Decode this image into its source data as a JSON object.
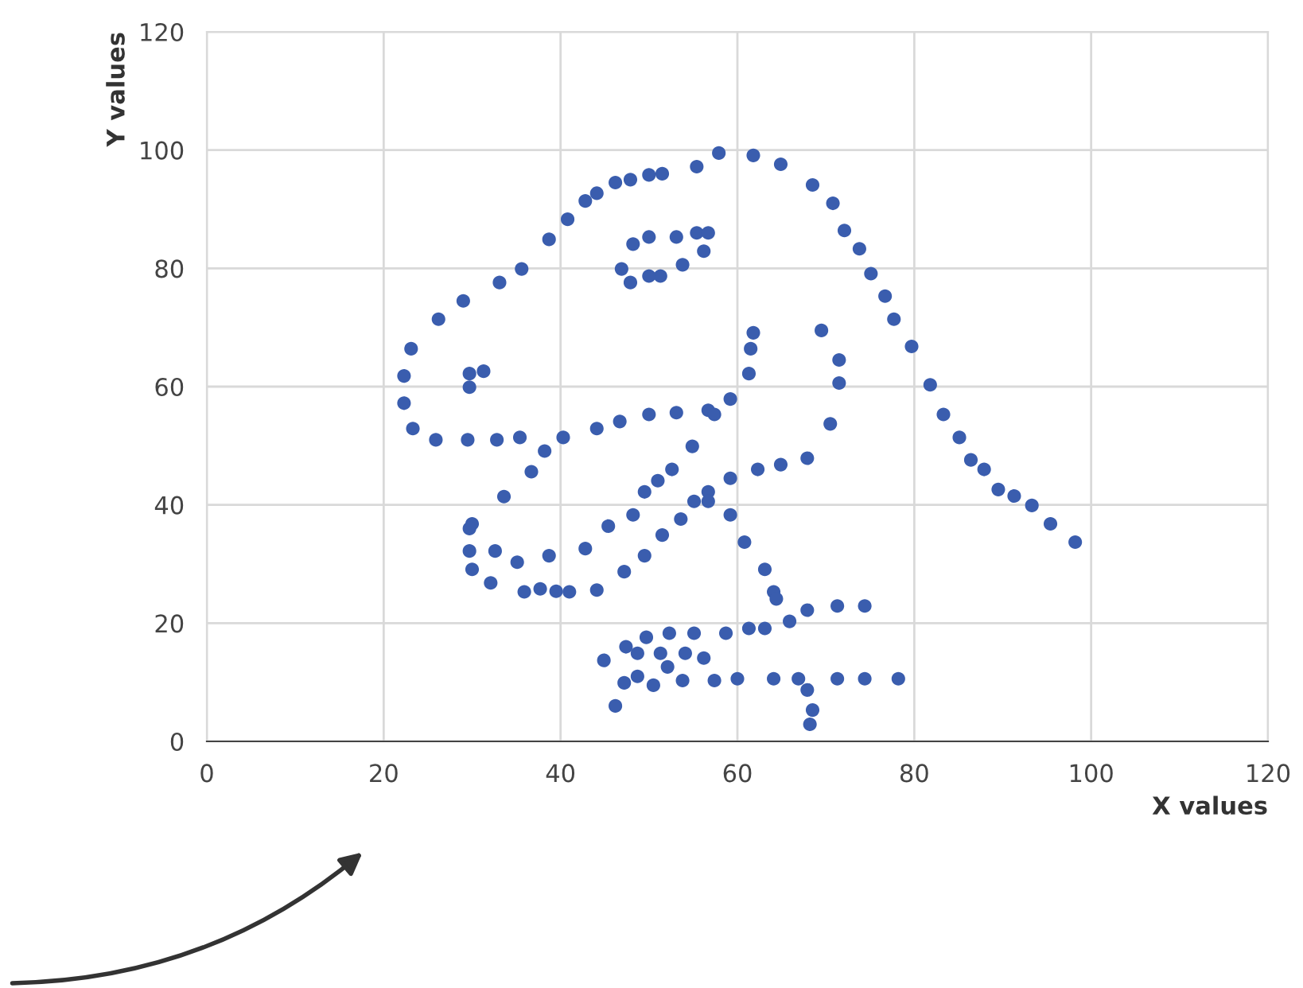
{
  "chart_data": {
    "type": "scatter",
    "xlabel": "X values",
    "ylabel": "Y values",
    "xlim": [
      0,
      120
    ],
    "ylim": [
      0,
      120
    ],
    "xticks": [
      0,
      20,
      40,
      60,
      80,
      100,
      120
    ],
    "yticks": [
      0,
      20,
      40,
      60,
      80,
      100,
      120
    ],
    "grid": true,
    "marker": "circle",
    "series": [
      {
        "color": "#3a5dae",
        "x": [
          55.4,
          51.5,
          46.2,
          42.8,
          40.8,
          38.7,
          35.6,
          33.1,
          29.0,
          26.2,
          23.1,
          22.3,
          22.3,
          23.3,
          25.9,
          29.5,
          32.8,
          35.4,
          40.3,
          44.1,
          46.7,
          50.0,
          53.1,
          56.7,
          59.2,
          61.3,
          61.5,
          61.8,
          57.4,
          54.9,
          52.6,
          48.2,
          49.5,
          51.0,
          45.4,
          42.8,
          38.7,
          35.1,
          32.6,
          30.0,
          33.6,
          36.7,
          38.2,
          29.7,
          29.7,
          30.0,
          32.1,
          35.9,
          41.0,
          44.1,
          47.2,
          49.5,
          51.5,
          53.6,
          55.1,
          56.7,
          59.2,
          62.3,
          64.9,
          67.9,
          70.5,
          71.5,
          71.5,
          69.5,
          46.9,
          48.2,
          50.0,
          53.1,
          55.4,
          56.7,
          56.2,
          53.8,
          51.3,
          50.0,
          47.9,
          29.7,
          29.7,
          31.3,
          57.9,
          61.8,
          64.9,
          68.5,
          70.8,
          72.1,
          73.8,
          75.1,
          76.7,
          77.7,
          79.7,
          81.8,
          83.3,
          85.1,
          86.4,
          87.9,
          89.5,
          93.3,
          95.4,
          98.2,
          56.7,
          59.2,
          60.8,
          63.1,
          64.1,
          64.4,
          74.4,
          71.3,
          67.9,
          65.9,
          63.1,
          61.3,
          58.7,
          55.1,
          52.3,
          49.7,
          47.4,
          44.9,
          48.7,
          51.3,
          54.1,
          56.2,
          52.1,
          48.7,
          47.2,
          46.2,
          50.5,
          53.8,
          57.4,
          60.0,
          64.1,
          66.9,
          71.3,
          74.4,
          78.2,
          67.9,
          68.5,
          68.2,
          37.7,
          39.5,
          91.3,
          50.0,
          47.9,
          44.1
        ],
        "values": [
          97.2,
          96.0,
          94.5,
          91.4,
          88.3,
          84.9,
          79.9,
          77.6,
          74.5,
          71.4,
          66.4,
          61.8,
          57.2,
          52.9,
          51.0,
          51.0,
          51.0,
          51.4,
          51.4,
          52.9,
          54.1,
          55.3,
          55.6,
          56.0,
          57.9,
          62.2,
          66.4,
          69.1,
          55.3,
          49.9,
          46.0,
          38.3,
          42.2,
          44.1,
          36.4,
          32.6,
          31.4,
          30.3,
          32.2,
          36.8,
          41.4,
          45.6,
          49.1,
          36.0,
          32.2,
          29.1,
          26.8,
          25.3,
          25.3,
          25.6,
          28.7,
          31.4,
          34.9,
          37.6,
          40.6,
          42.2,
          44.5,
          46.0,
          46.8,
          47.9,
          53.7,
          60.6,
          64.5,
          69.5,
          79.9,
          84.1,
          85.3,
          85.3,
          86.0,
          86.0,
          82.9,
          80.6,
          78.7,
          78.7,
          77.6,
          59.9,
          62.2,
          62.6,
          99.5,
          99.1,
          97.6,
          94.1,
          91.0,
          86.4,
          83.3,
          79.1,
          75.3,
          71.4,
          66.8,
          60.3,
          55.3,
          51.4,
          47.6,
          46.0,
          42.6,
          39.9,
          36.8,
          33.7,
          40.6,
          38.3,
          33.7,
          29.1,
          25.3,
          24.1,
          22.9,
          22.9,
          22.2,
          20.3,
          19.1,
          19.1,
          18.3,
          18.3,
          18.3,
          17.6,
          16.0,
          13.7,
          14.9,
          14.9,
          14.9,
          14.1,
          12.6,
          11.0,
          9.9,
          6.0,
          9.5,
          10.3,
          10.3,
          10.6,
          10.6,
          10.6,
          10.6,
          10.6,
          10.6,
          8.7,
          5.3,
          2.9,
          25.8,
          25.4,
          41.5,
          95.8,
          95.0,
          92.7
        ]
      }
    ]
  }
}
